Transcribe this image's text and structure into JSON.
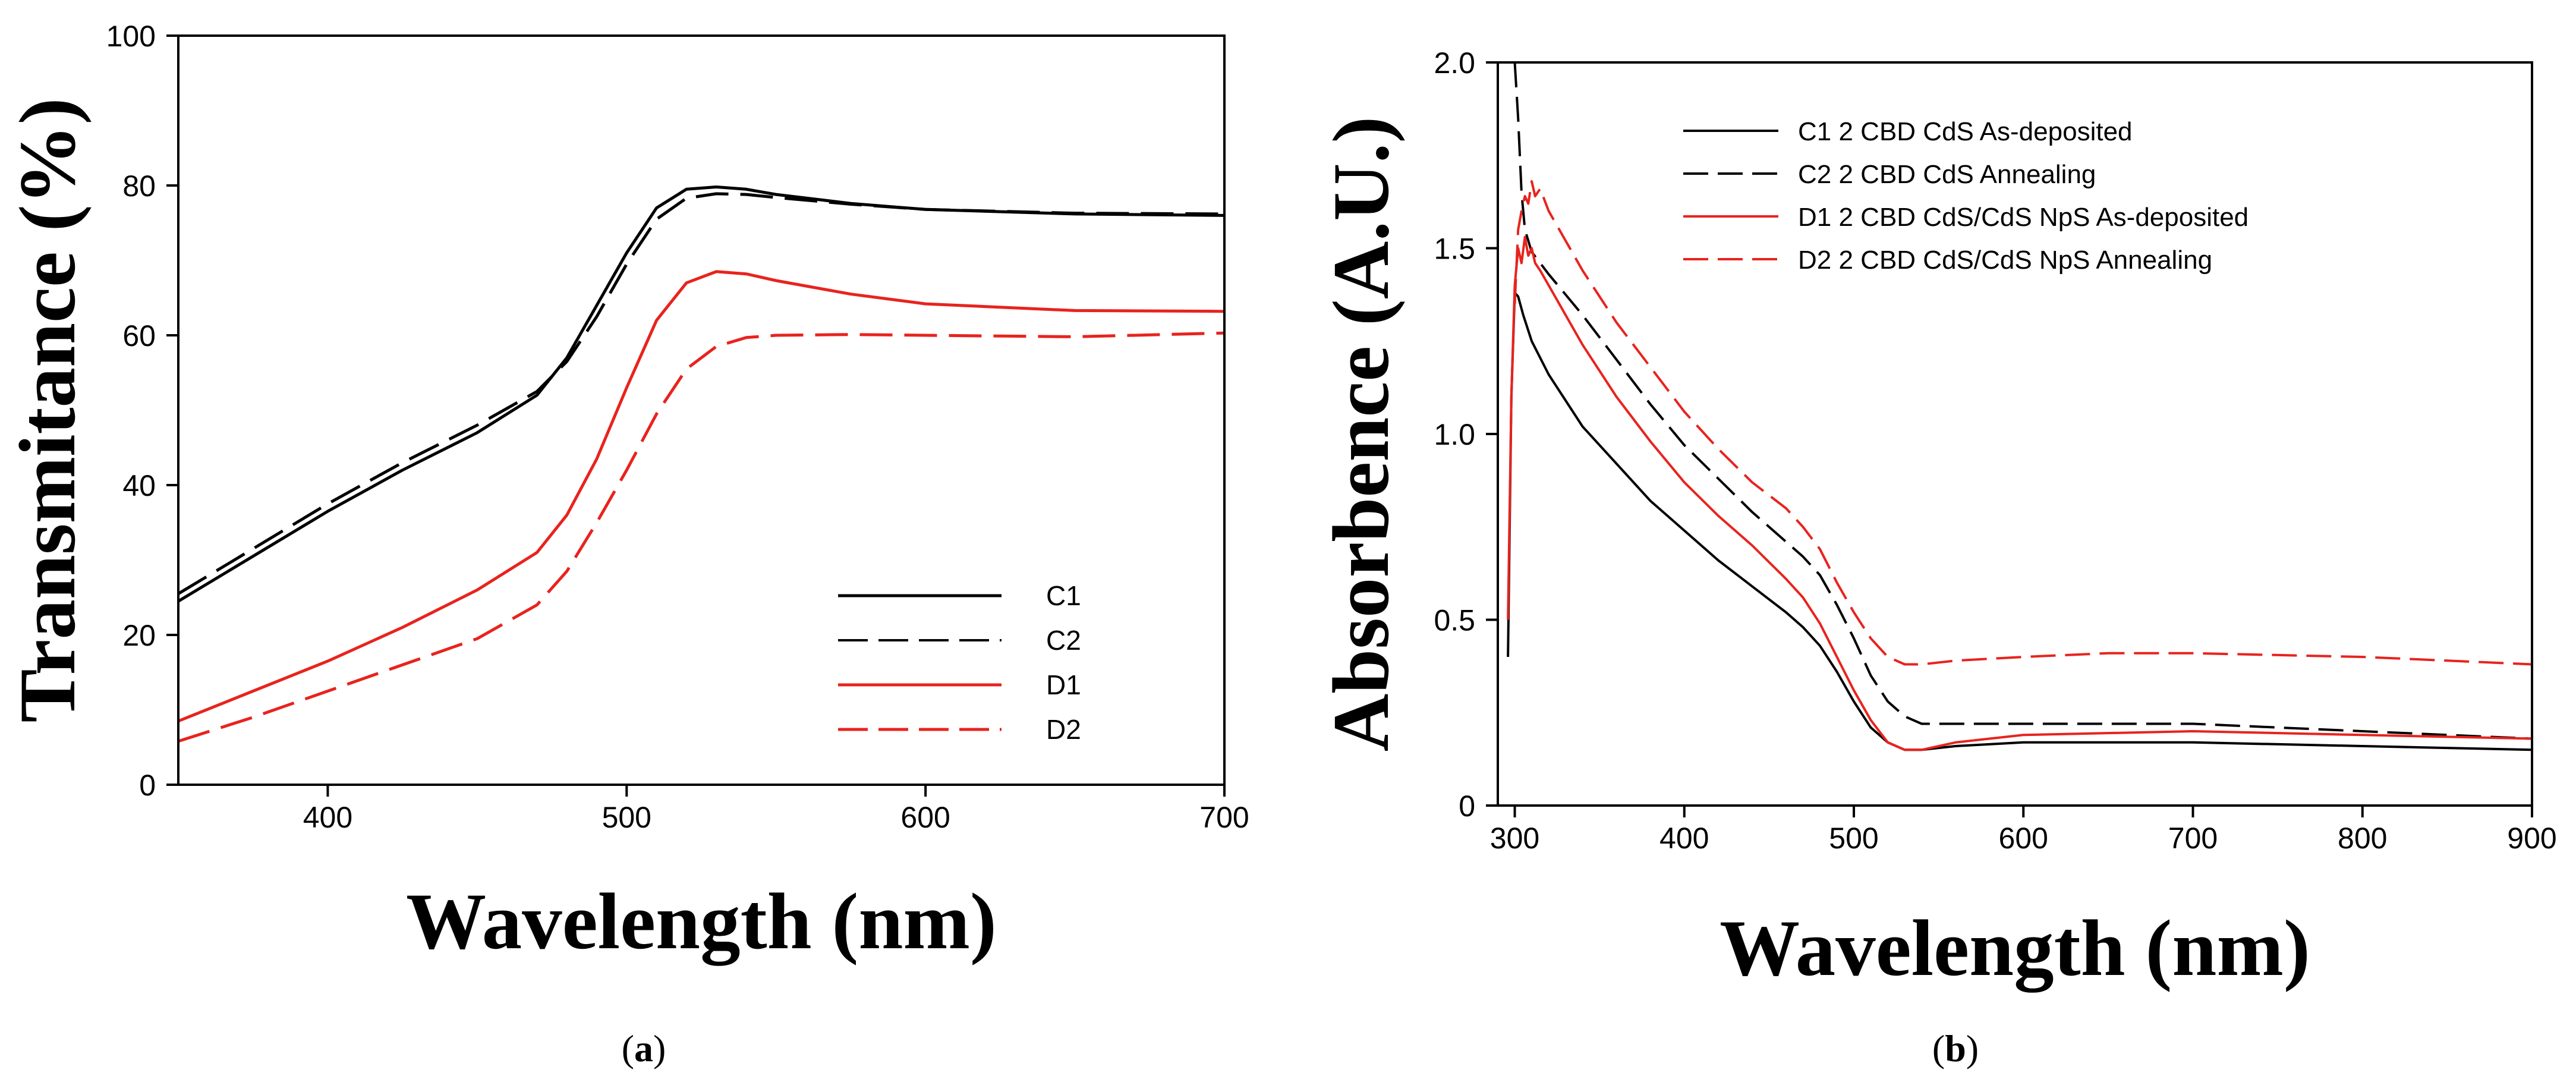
{
  "chart_data": [
    {
      "type": "line",
      "panel_label": "(a)",
      "panel_letter": "a",
      "title": "",
      "xlabel": "Wavelength (nm)",
      "ylabel": "Transmitance (%)",
      "xlim": [
        350,
        700
      ],
      "ylim": [
        0,
        100
      ],
      "xticks": [
        400,
        500,
        600,
        700
      ],
      "yticks": [
        0,
        20,
        40,
        60,
        80,
        100
      ],
      "grid": false,
      "legend_position": "lower-right",
      "series": [
        {
          "name": "C1",
          "color": "#000000",
          "dash": "solid",
          "x": [
            350,
            375,
            400,
            425,
            450,
            470,
            480,
            490,
            500,
            510,
            520,
            530,
            540,
            550,
            575,
            600,
            650,
            700
          ],
          "y": [
            24.5,
            30.5,
            36.5,
            42,
            47,
            52,
            57,
            64,
            71,
            77,
            79.5,
            79.8,
            79.5,
            78.8,
            77.6,
            76.8,
            76.2,
            76.0
          ]
        },
        {
          "name": "C2",
          "color": "#000000",
          "dash": "long-dash",
          "x": [
            350,
            375,
            400,
            425,
            450,
            470,
            480,
            490,
            500,
            510,
            520,
            530,
            540,
            550,
            575,
            600,
            650,
            700
          ],
          "y": [
            25.5,
            31.5,
            37.5,
            43,
            48,
            52.5,
            56.5,
            62.5,
            69.5,
            75.5,
            78.3,
            78.9,
            78.8,
            78.4,
            77.5,
            76.8,
            76.3,
            76.2
          ]
        },
        {
          "name": "D1",
          "color": "#e8231e",
          "dash": "solid",
          "x": [
            350,
            375,
            400,
            425,
            450,
            470,
            480,
            490,
            500,
            510,
            520,
            530,
            540,
            550,
            575,
            600,
            650,
            700
          ],
          "y": [
            8.5,
            12.5,
            16.5,
            21,
            26,
            31,
            36,
            43.5,
            53,
            62,
            67,
            68.5,
            68.2,
            67.3,
            65.5,
            64.2,
            63.3,
            63.2
          ]
        },
        {
          "name": "D2",
          "color": "#e8231e",
          "dash": "long-dash",
          "x": [
            350,
            375,
            400,
            425,
            450,
            470,
            480,
            490,
            500,
            510,
            520,
            530,
            540,
            550,
            575,
            600,
            650,
            700
          ],
          "y": [
            5.8,
            9,
            12.5,
            16,
            19.5,
            24,
            28.5,
            35,
            42,
            49.5,
            55.5,
            58.5,
            59.7,
            60,
            60.1,
            60,
            59.8,
            60.3
          ]
        }
      ]
    },
    {
      "type": "line",
      "panel_label": "(b)",
      "panel_letter": "b",
      "title": "",
      "xlabel": "Wavelength (nm)",
      "ylabel": "Absorbence (A.U.)",
      "xlim": [
        290,
        900
      ],
      "ylim": [
        0,
        2.0
      ],
      "xticks": [
        300,
        400,
        500,
        600,
        700,
        800,
        900
      ],
      "yticks": [
        0,
        0.5,
        1.0,
        1.5,
        2.0
      ],
      "ytick_labels": [
        "0",
        "0.5",
        "1.0",
        "1.5",
        "2.0"
      ],
      "grid": false,
      "legend_position": "top-right",
      "series": [
        {
          "name": "C1 2 CBD CdS As-deposited",
          "color": "#000000",
          "dash": "solid",
          "x": [
            296,
            298,
            300,
            302,
            305,
            310,
            320,
            340,
            360,
            380,
            400,
            420,
            440,
            460,
            470,
            480,
            490,
            500,
            510,
            520,
            530,
            540,
            560,
            600,
            700,
            800,
            900
          ],
          "y": [
            0.4,
            1.1,
            1.38,
            1.37,
            1.32,
            1.25,
            1.16,
            1.02,
            0.92,
            0.82,
            0.74,
            0.66,
            0.59,
            0.52,
            0.48,
            0.43,
            0.36,
            0.28,
            0.21,
            0.17,
            0.15,
            0.15,
            0.16,
            0.17,
            0.17,
            0.16,
            0.15
          ]
        },
        {
          "name": "C2 2 CBD CdS Annealing",
          "color": "#000000",
          "dash": "long-dash",
          "x": [
            300,
            302,
            304,
            306,
            308,
            310,
            315,
            320,
            340,
            360,
            380,
            400,
            420,
            440,
            460,
            470,
            480,
            490,
            500,
            510,
            520,
            530,
            540,
            560,
            600,
            700,
            800,
            900
          ],
          "y": [
            2.0,
            1.85,
            1.65,
            1.55,
            1.52,
            1.49,
            1.46,
            1.43,
            1.32,
            1.2,
            1.08,
            0.97,
            0.88,
            0.79,
            0.71,
            0.67,
            0.62,
            0.54,
            0.45,
            0.35,
            0.28,
            0.24,
            0.22,
            0.22,
            0.22,
            0.22,
            0.2,
            0.18
          ]
        },
        {
          "name": "D1 2 CBD CdS/CdS NpS As-deposited",
          "color": "#e8231e",
          "dash": "solid",
          "x": [
            296,
            298,
            300,
            302,
            304,
            306,
            308,
            310,
            312,
            315,
            320,
            340,
            360,
            380,
            400,
            420,
            440,
            460,
            470,
            480,
            490,
            500,
            510,
            520,
            530,
            540,
            560,
            600,
            700,
            800,
            900
          ],
          "y": [
            0.5,
            1.1,
            1.4,
            1.5,
            1.46,
            1.53,
            1.48,
            1.5,
            1.46,
            1.44,
            1.4,
            1.24,
            1.1,
            0.98,
            0.87,
            0.78,
            0.7,
            0.61,
            0.56,
            0.49,
            0.4,
            0.31,
            0.23,
            0.17,
            0.15,
            0.15,
            0.17,
            0.19,
            0.2,
            0.19,
            0.18
          ]
        },
        {
          "name": "D2 2 CBD CdS/CdS NpS Annealing",
          "color": "#e8231e",
          "dash": "long-dash",
          "x": [
            300,
            302,
            304,
            306,
            308,
            310,
            312,
            315,
            320,
            330,
            340,
            360,
            380,
            400,
            420,
            440,
            460,
            470,
            480,
            490,
            500,
            510,
            520,
            530,
            540,
            560,
            600,
            650,
            700,
            800,
            900
          ],
          "y": [
            1.35,
            1.55,
            1.6,
            1.64,
            1.62,
            1.68,
            1.64,
            1.66,
            1.6,
            1.52,
            1.44,
            1.3,
            1.18,
            1.06,
            0.96,
            0.87,
            0.8,
            0.75,
            0.69,
            0.6,
            0.52,
            0.45,
            0.4,
            0.38,
            0.38,
            0.39,
            0.4,
            0.41,
            0.41,
            0.4,
            0.38
          ]
        }
      ]
    }
  ]
}
